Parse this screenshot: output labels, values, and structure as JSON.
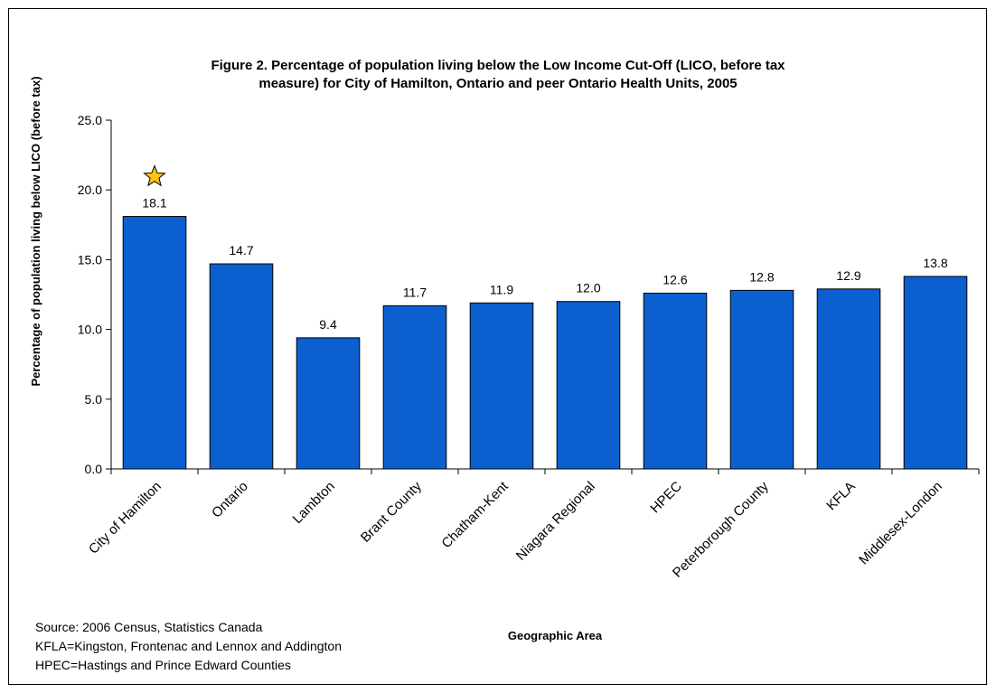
{
  "chart_data": {
    "type": "bar",
    "title_line1": "Figure 2.  Percentage of population living below the Low Income Cut-Off (LICO, before tax",
    "title_line2": "measure) for City of Hamilton, Ontario and peer Ontario Health Units, 2005",
    "xlabel": "Geographic Area",
    "ylabel": "Percentage of population living below LICO (before tax)",
    "ylim": [
      0,
      25
    ],
    "yticks": [
      "0.0",
      "5.0",
      "10.0",
      "15.0",
      "20.0",
      "25.0"
    ],
    "categories": [
      "City of Hamilton",
      "Ontario",
      "Lambton",
      "Brant County",
      "Chatham-Kent",
      "Niagara Regional",
      "HPEC",
      "Peterborough County",
      "KFLA",
      "Middlesex-London"
    ],
    "values": [
      18.1,
      14.7,
      9.4,
      11.7,
      11.9,
      12.0,
      12.6,
      12.8,
      12.9,
      13.8
    ],
    "value_labels": [
      "18.1",
      "14.7",
      "9.4",
      "11.7",
      "11.9",
      "12.0",
      "12.6",
      "12.8",
      "12.9",
      "13.8"
    ],
    "highlight_category": "City of Hamilton",
    "highlight_marker": "star-icon",
    "grid": false,
    "legend": "none",
    "colors": {
      "bar": "#0b5fcf",
      "bar_outline": "#000000",
      "star": "#ffc20e"
    }
  },
  "footnotes": [
    "Source: 2006 Census, Statistics Canada",
    "KFLA=Kingston, Frontenac and Lennox and Addington",
    "HPEC=Hastings and Prince Edward Counties"
  ]
}
